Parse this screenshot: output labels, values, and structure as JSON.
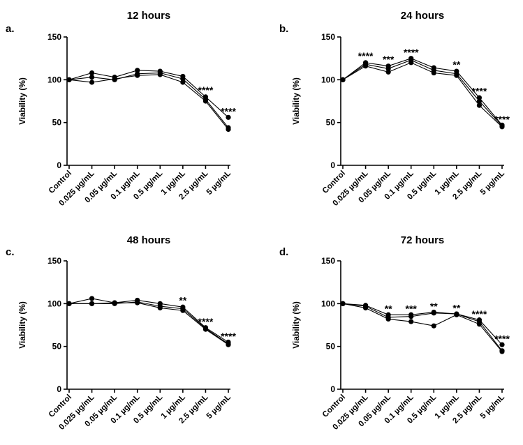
{
  "chart_data": [
    {
      "panel": "a.",
      "type": "line",
      "title": "12 hours",
      "ylabel": "Viability (%)",
      "xlabel": "",
      "ylim": [
        0,
        150
      ],
      "yticks": [
        "0",
        "50",
        "100",
        "150"
      ],
      "categories": [
        "Control",
        "0.025 µg/mL",
        "0.05 µg/mL",
        "0.1 µg/mL",
        "0.5 µg/mL",
        "1 µg/mL",
        "2.5 µg/mL",
        "5 µg/mL"
      ],
      "series": [
        {
          "values": [
            100,
            108,
            103,
            111,
            110,
            104,
            80,
            56
          ]
        },
        {
          "values": [
            100,
            103,
            100,
            107,
            108,
            101,
            77,
            44
          ]
        },
        {
          "values": [
            100,
            97,
            101,
            105,
            106,
            97,
            75,
            42
          ]
        }
      ],
      "annotations": [
        {
          "category": "2.5 µg/mL",
          "text": "****",
          "y": 88
        },
        {
          "category": "5 µg/mL",
          "text": "****",
          "y": 63
        }
      ]
    },
    {
      "panel": "b.",
      "type": "line",
      "title": "24 hours",
      "ylabel": "Viability (%)",
      "xlabel": "",
      "ylim": [
        0,
        150
      ],
      "yticks": [
        "0",
        "50",
        "100",
        "150"
      ],
      "categories": [
        "Control",
        "0.025 µg/mL",
        "0.05 µg/mL",
        "0.1 µg/mL",
        "0.5 µg/mL",
        "1 µg/mL",
        "2.5 µg/mL",
        "5 µg/mL"
      ],
      "series": [
        {
          "values": [
            100,
            120,
            116,
            125,
            114,
            110,
            79,
            47
          ]
        },
        {
          "values": [
            100,
            118,
            113,
            123,
            111,
            107,
            75,
            46
          ]
        },
        {
          "values": [
            100,
            116,
            109,
            120,
            108,
            105,
            70,
            45
          ]
        }
      ],
      "annotations": [
        {
          "category": "0.025 µg/mL",
          "text": "****",
          "y": 128
        },
        {
          "category": "0.05 µg/mL",
          "text": "***",
          "y": 124
        },
        {
          "category": "0.1 µg/mL",
          "text": "****",
          "y": 132
        },
        {
          "category": "1 µg/mL",
          "text": "**",
          "y": 118
        },
        {
          "category": "2.5 µg/mL",
          "text": "****",
          "y": 87
        },
        {
          "category": "5 µg/mL",
          "text": "****",
          "y": 54
        }
      ]
    },
    {
      "panel": "c.",
      "type": "line",
      "title": "48 hours",
      "ylabel": "Viability (%)",
      "xlabel": "",
      "ylim": [
        0,
        150
      ],
      "yticks": [
        "0",
        "50",
        "100",
        "150"
      ],
      "categories": [
        "Control",
        "0.025 µg/mL",
        "0.05 µg/mL",
        "0.1 µg/mL",
        "0.5 µg/mL",
        "1 µg/mL",
        "2.5 µg/mL",
        "5 µg/mL"
      ],
      "series": [
        {
          "values": [
            100,
            106,
            101,
            104,
            100,
            96,
            72,
            55
          ]
        },
        {
          "values": [
            100,
            100,
            100,
            102,
            97,
            94,
            71,
            53
          ]
        },
        {
          "values": [
            100,
            100,
            101,
            101,
            95,
            92,
            70,
            52
          ]
        }
      ],
      "annotations": [
        {
          "category": "1 µg/mL",
          "text": "**",
          "y": 104
        },
        {
          "category": "2.5 µg/mL",
          "text": "****",
          "y": 79
        },
        {
          "category": "5 µg/mL",
          "text": "****",
          "y": 62
        }
      ]
    },
    {
      "panel": "d.",
      "type": "line",
      "title": "72 hours",
      "ylabel": "Viability (%)",
      "xlabel": "",
      "ylim": [
        0,
        150
      ],
      "yticks": [
        "0",
        "50",
        "100",
        "150"
      ],
      "categories": [
        "Control",
        "0.025 µg/mL",
        "0.05 µg/mL",
        "0.1 µg/mL",
        "0.5 µg/mL",
        "1 µg/mL",
        "2.5 µg/mL",
        "5 µg/mL"
      ],
      "series": [
        {
          "values": [
            100,
            98,
            87,
            87,
            90,
            88,
            81,
            52
          ]
        },
        {
          "values": [
            100,
            97,
            84,
            85,
            89,
            88,
            79,
            45
          ]
        },
        {
          "values": [
            100,
            95,
            82,
            79,
            74,
            87,
            76,
            44
          ]
        }
      ],
      "annotations": [
        {
          "category": "0.05 µg/mL",
          "text": "**",
          "y": 94
        },
        {
          "category": "0.1 µg/mL",
          "text": "***",
          "y": 94
        },
        {
          "category": "0.5 µg/mL",
          "text": "**",
          "y": 97
        },
        {
          "category": "1 µg/mL",
          "text": "**",
          "y": 95
        },
        {
          "category": "2.5 µg/mL",
          "text": "****",
          "y": 88
        },
        {
          "category": "5 µg/mL",
          "text": "****",
          "y": 59
        }
      ]
    }
  ]
}
